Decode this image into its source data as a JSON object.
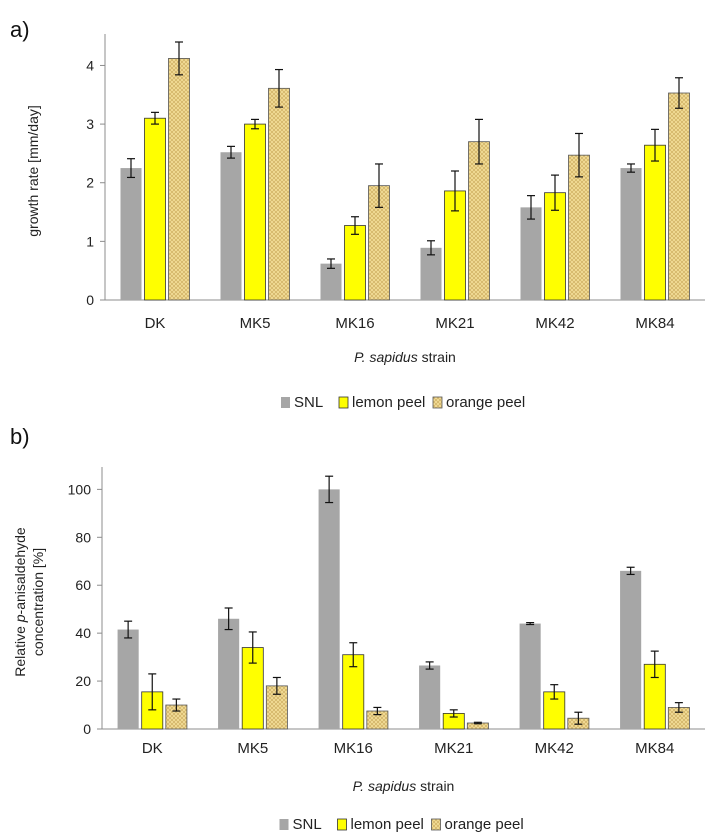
{
  "panels": [
    {
      "letter": "a)"
    },
    {
      "letter": "b)"
    }
  ],
  "colors": {
    "SNL": "#a6a6a6",
    "lemon_peel": "#ffff00",
    "orange_peel": "#f2dc96"
  },
  "chart_data": [
    {
      "type": "bar",
      "categories": [
        "DK",
        "MK5",
        "MK16",
        "MK21",
        "MK42",
        "MK84"
      ],
      "xlabel_italic": "P. sapidus",
      "xlabel_rest": " strain",
      "ylabel": "growth rate [mm/day]",
      "ylabel_lines": [
        "growth rate [mm/day]"
      ],
      "ylim": [
        0,
        4.4
      ],
      "yticks": [
        0,
        1,
        2,
        3,
        4
      ],
      "legend_position": "bottom-center",
      "grid": false,
      "series": [
        {
          "name": "SNL",
          "values": [
            2.25,
            2.52,
            0.62,
            0.89,
            1.58,
            2.25
          ],
          "errors": [
            0.16,
            0.1,
            0.08,
            0.12,
            0.2,
            0.07
          ]
        },
        {
          "name": "lemon peel",
          "values": [
            3.1,
            3.0,
            1.27,
            1.86,
            1.83,
            2.64
          ],
          "errors": [
            0.1,
            0.08,
            0.15,
            0.34,
            0.3,
            0.27
          ]
        },
        {
          "name": "orange peel",
          "values": [
            4.12,
            3.61,
            1.95,
            2.7,
            2.47,
            3.53
          ],
          "errors": [
            0.28,
            0.32,
            0.37,
            0.38,
            0.37,
            0.26
          ]
        }
      ]
    },
    {
      "type": "bar",
      "categories": [
        "DK",
        "MK5",
        "MK16",
        "MK21",
        "MK42",
        "MK84"
      ],
      "xlabel_italic": "P. sapidus",
      "xlabel_rest": " strain",
      "ylabel_lines": [
        "Relative p-anisaldehyde",
        "concentration [%]"
      ],
      "ylim": [
        0,
        106
      ],
      "yticks": [
        0,
        20,
        40,
        60,
        80,
        100
      ],
      "legend_position": "bottom-center",
      "grid": false,
      "series": [
        {
          "name": "SNL",
          "values": [
            41.5,
            46,
            100,
            26.5,
            44,
            66
          ],
          "errors": [
            3.5,
            4.5,
            5.5,
            1.5,
            0.4,
            1.5
          ]
        },
        {
          "name": "lemon peel",
          "values": [
            15.5,
            34,
            31,
            6.5,
            15.5,
            27
          ],
          "errors": [
            7.5,
            6.5,
            5,
            1.5,
            3,
            5.5
          ]
        },
        {
          "name": "orange peel",
          "values": [
            10,
            18,
            7.5,
            2.5,
            4.5,
            9
          ],
          "errors": [
            2.5,
            3.5,
            1.5,
            0.3,
            2.5,
            2
          ]
        }
      ]
    }
  ]
}
